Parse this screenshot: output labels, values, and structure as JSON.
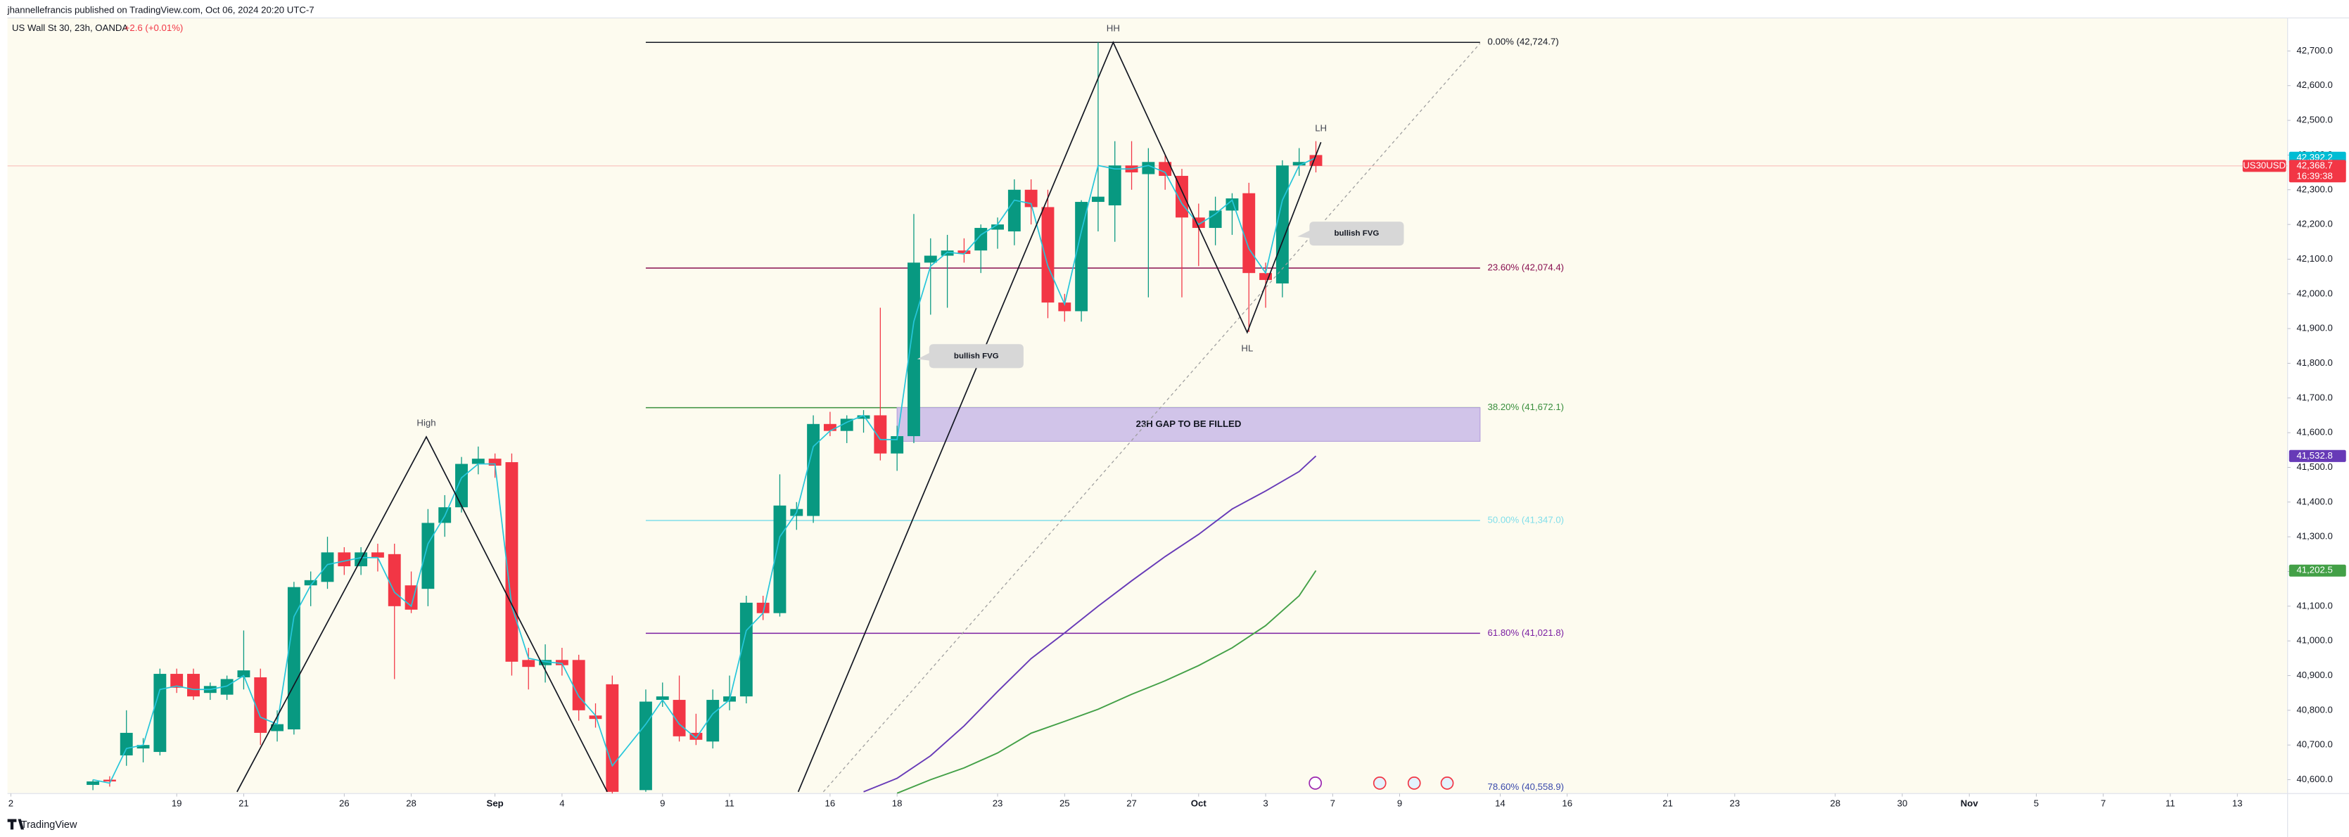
{
  "chart_data": {
    "type": "candlestick",
    "header": "jhannellefrancis published on TradingView.com, Oct 06, 2024 20:20 UTC-7",
    "title": "US Wall St 30, 23h, OANDA",
    "change": "+2.6 (+0.01%)",
    "symbol": "US30USD",
    "countdown": "16:39:38",
    "branding": "TradingView",
    "up_color": "#089981",
    "down_color": "#f23645",
    "x": [
      0,
      1,
      2,
      3,
      4,
      5,
      6,
      7,
      8,
      9,
      10,
      11,
      12,
      13,
      14,
      15,
      16,
      17,
      18,
      19,
      20,
      21,
      22,
      23,
      24,
      25,
      26,
      27,
      28,
      29,
      30,
      31,
      33,
      34,
      35,
      36,
      37,
      38,
      39,
      40,
      41,
      42,
      43,
      44,
      45,
      46,
      47,
      48,
      49,
      50,
      51,
      52,
      53,
      54,
      55,
      56,
      57,
      58,
      59,
      60,
      61,
      62,
      63,
      64,
      65,
      66,
      67,
      68,
      69,
      70,
      71,
      72,
      73
    ],
    "open": [
      40585,
      40600,
      40670,
      40690,
      40680,
      40905,
      40905,
      40850,
      40845,
      40895,
      40895,
      40740,
      40745,
      41160,
      41170,
      41255,
      41215,
      41255,
      41250,
      41160,
      41150,
      41340,
      41385,
      41510,
      41525,
      41515,
      40945,
      40930,
      40945,
      40945,
      40785,
      40875,
      40570,
      40830,
      40830,
      40735,
      40710,
      40825,
      40840,
      41110,
      41080,
      41360,
      41360,
      41625,
      41605,
      41640,
      41650,
      41540,
      41590,
      42090,
      42110,
      42125,
      42125,
      42185,
      42180,
      42300,
      42250,
      41975,
      41950,
      42265,
      42255,
      42370,
      42345,
      42380,
      42340,
      42220,
      42190,
      42240,
      42290,
      42060,
      42030,
      42370,
      42400
    ],
    "high": [
      40600,
      40610,
      40800,
      40720,
      40920,
      40920,
      40920,
      40880,
      40900,
      41030,
      40920,
      40800,
      41170,
      41200,
      41300,
      41270,
      41270,
      41280,
      41280,
      41200,
      41380,
      41420,
      41530,
      41560,
      41540,
      41540,
      40980,
      40990,
      40980,
      40960,
      40820,
      40900,
      40860,
      40880,
      40900,
      40790,
      40860,
      40900,
      41130,
      41130,
      41480,
      41400,
      41650,
      41660,
      41650,
      41665,
      41960,
      41620,
      42230,
      42160,
      42170,
      42160,
      42200,
      42220,
      42330,
      42330,
      42300,
      42000,
      42270,
      42724.7,
      42440,
      42440,
      42420,
      42400,
      42360,
      42260,
      42280,
      42290,
      42320,
      42090,
      42385,
      42420,
      42440
    ],
    "low": [
      40570,
      40580,
      40640,
      40650,
      40670,
      40850,
      40830,
      40830,
      40830,
      40860,
      40700,
      40710,
      40730,
      41100,
      41150,
      41190,
      41190,
      41200,
      40890,
      41080,
      41100,
      41300,
      41370,
      41480,
      41470,
      40900,
      40860,
      40880,
      40900,
      40770,
      40750,
      40560,
      40565,
      40810,
      40710,
      40700,
      40690,
      40800,
      40820,
      41060,
      41070,
      41320,
      41340,
      41590,
      41570,
      41600,
      41520,
      41490,
      41570,
      41940,
      41960,
      42090,
      42060,
      42130,
      42140,
      42200,
      41930,
      41920,
      41920,
      42180,
      42150,
      42300,
      41990,
      42300,
      41990,
      42080,
      42140,
      42170,
      41890,
      41960,
      41990,
      42340,
      42350
    ],
    "close": [
      40595,
      40595,
      40735,
      40700,
      40905,
      40865,
      40840,
      40870,
      40890,
      40915,
      40735,
      40760,
      41155,
      41175,
      41255,
      41215,
      41255,
      41240,
      41100,
      41090,
      41340,
      41385,
      41510,
      41525,
      41505,
      40940,
      40925,
      40945,
      40930,
      40800,
      40775,
      40565,
      40825,
      40840,
      40725,
      40715,
      40830,
      40840,
      41110,
      41080,
      41390,
      41380,
      41625,
      41605,
      41640,
      41650,
      41540,
      41590,
      42090,
      42110,
      42125,
      42115,
      42190,
      42200,
      42300,
      42250,
      41975,
      41950,
      42265,
      42280,
      42370,
      42350,
      42380,
      42340,
      42220,
      42190,
      42240,
      42275,
      42060,
      42040,
      42370,
      42380,
      42368.7
    ],
    "lines": [
      {
        "color": "#26c6da",
        "x": [
          0,
          1,
          2,
          3,
          4,
          5,
          6,
          7,
          8,
          9,
          10,
          11,
          12,
          13,
          14,
          15,
          16,
          17,
          18,
          19,
          20,
          21,
          22,
          23,
          24,
          25,
          26,
          27,
          28,
          29,
          30,
          31,
          33,
          34,
          35,
          36,
          37,
          38,
          39,
          40,
          41,
          42,
          43,
          44,
          45,
          46,
          47,
          48,
          49,
          50,
          51,
          52,
          53,
          54,
          55,
          56,
          57,
          58,
          59,
          60,
          61,
          62,
          63,
          64,
          65,
          66,
          67,
          68,
          69,
          70,
          71,
          72,
          73
        ],
        "values": [
          40600,
          40590,
          40690,
          40700,
          40860,
          40870,
          40860,
          40860,
          40870,
          40900,
          40780,
          40760,
          41070,
          41160,
          41220,
          41230,
          41240,
          41240,
          41140,
          41100,
          41280,
          41360,
          41470,
          41510,
          41510,
          41100,
          40950,
          40940,
          40935,
          40840,
          40785,
          40640,
          40760,
          40830,
          40760,
          40720,
          40790,
          40830,
          41030,
          41080,
          41300,
          41370,
          41560,
          41605,
          41630,
          41650,
          41580,
          41580,
          41920,
          42080,
          42120,
          42115,
          42170,
          42200,
          42270,
          42260,
          42080,
          41970,
          42180,
          42370,
          42360,
          42360,
          42370,
          42350,
          42260,
          42200,
          42230,
          42270,
          42130,
          42060,
          42270,
          42370,
          42392.2
        ]
      },
      {
        "color": "#673ab7",
        "x": [
          46,
          48,
          50,
          52,
          54,
          56,
          58,
          60,
          62,
          64,
          66,
          68,
          70,
          72,
          73
        ],
        "values": [
          40565,
          40604,
          40669,
          40755,
          40854,
          40949,
          41023,
          41100,
          41173,
          41243,
          41307,
          41380,
          41432,
          41488,
          41532.8
        ]
      },
      {
        "color": "#43a047",
        "x": [
          48,
          50,
          52,
          54,
          56,
          58,
          60,
          62,
          64,
          66,
          68,
          70,
          72,
          73
        ],
        "values": [
          40561,
          40600,
          40634,
          40677,
          40734,
          40768,
          40803,
          40846,
          40885,
          40929,
          40980,
          41044,
          41130,
          41202.5
        ]
      }
    ],
    "price_tags": [
      {
        "value": 42392.2,
        "label": "42,392.2",
        "color": "#00bcd4"
      },
      {
        "value": 42368.7,
        "label": "42,368.7",
        "color": "#f23645"
      },
      {
        "value": 41532.8,
        "label": "41,532.8",
        "color": "#673ab7"
      },
      {
        "value": 41202.5,
        "label": "41,202.5",
        "color": "#43a047"
      }
    ],
    "fib_x": [
      33,
      82.8
    ],
    "fib_levels": [
      {
        "value": 42724.7,
        "label": "0.00% (42,724.7)",
        "color": "#131722"
      },
      {
        "value": 42074.4,
        "label": "23.60% (42,074.4)",
        "color": "#880e4f"
      },
      {
        "value": 41672.1,
        "label": "38.20% (41,672.1)",
        "color": "#388e3c"
      },
      {
        "value": 41347.0,
        "label": "50.00% (41,347.0)",
        "color": "#80deea"
      },
      {
        "value": 41021.8,
        "label": "61.80% (41,021.8)",
        "color": "#7b1fa2"
      },
      {
        "value": 40558.9,
        "label": "78.60% (40,558.9)",
        "color": "#3949ab"
      }
    ],
    "gap": {
      "label": "23H GAP TO BE FILLED",
      "top": 41672.1,
      "bottom": 41575,
      "x": [
        48,
        82.8
      ]
    },
    "zigzags": [
      {
        "x": [
          8.6,
          19.9,
          30.7
        ],
        "values": [
          40565,
          41588,
          40565
        ],
        "labels": [
          null,
          "High",
          null
        ]
      },
      {
        "x": [
          42.1,
          60.9,
          68.9,
          73.3
        ],
        "values": [
          40565,
          42724.7,
          41889,
          42437
        ],
        "labels": [
          null,
          "HH",
          "HL",
          "LH"
        ]
      }
    ],
    "trend_line": {
      "x": [
        43.6,
        82.8
      ],
      "values": [
        40565,
        42722
      ]
    },
    "callouts": [
      {
        "text": "bullish FVG",
        "x": 49.2,
        "value": 41812
      },
      {
        "text": "bullish FVG",
        "x": 71.9,
        "value": 42165
      }
    ],
    "xlim": [
      -5.1,
      131
    ],
    "xticks": [
      {
        "value": -4.9,
        "label": "2"
      },
      {
        "value": 5,
        "label": "19"
      },
      {
        "value": 9,
        "label": "21"
      },
      {
        "value": 15,
        "label": "26"
      },
      {
        "value": 19,
        "label": "28"
      },
      {
        "value": 24,
        "label": "Sep"
      },
      {
        "value": 28,
        "label": "4"
      },
      {
        "value": 34,
        "label": "9"
      },
      {
        "value": 38,
        "label": "11"
      },
      {
        "value": 44,
        "label": "16"
      },
      {
        "value": 48,
        "label": "18"
      },
      {
        "value": 54,
        "label": "23"
      },
      {
        "value": 58,
        "label": "25"
      },
      {
        "value": 62,
        "label": "27"
      },
      {
        "value": 66,
        "label": "Oct"
      },
      {
        "value": 70,
        "label": "3"
      },
      {
        "value": 74,
        "label": "7"
      },
      {
        "value": 78,
        "label": "9"
      },
      {
        "value": 84,
        "label": "14"
      },
      {
        "value": 88,
        "label": "16"
      },
      {
        "value": 94,
        "label": "21"
      },
      {
        "value": 98,
        "label": "23"
      },
      {
        "value": 104,
        "label": "28"
      },
      {
        "value": 108,
        "label": "30"
      },
      {
        "value": 112,
        "label": "Nov"
      },
      {
        "value": 116,
        "label": "5"
      },
      {
        "value": 120,
        "label": "7"
      },
      {
        "value": 124,
        "label": "11"
      },
      {
        "value": 128,
        "label": "13"
      }
    ],
    "ylim": [
      40560,
      42795
    ],
    "yticks": [
      {
        "value": 40600,
        "label": "40,600.0"
      },
      {
        "value": 40700,
        "label": "40,700.0"
      },
      {
        "value": 40800,
        "label": "40,800.0"
      },
      {
        "value": 40900,
        "label": "40,900.0"
      },
      {
        "value": 41000,
        "label": "41,000.0"
      },
      {
        "value": 41100,
        "label": "41,100.0"
      },
      {
        "value": 41200,
        "label": "41,200.0"
      },
      {
        "value": 41300,
        "label": "41,300.0"
      },
      {
        "value": 41400,
        "label": "41,400.0"
      },
      {
        "value": 41500,
        "label": "41,500.0"
      },
      {
        "value": 41600,
        "label": "41,600.0"
      },
      {
        "value": 41700,
        "label": "41,700.0"
      },
      {
        "value": 41800,
        "label": "41,800.0"
      },
      {
        "value": 41900,
        "label": "41,900.0"
      },
      {
        "value": 42000,
        "label": "42,000.0"
      },
      {
        "value": 42100,
        "label": "42,100.0"
      },
      {
        "value": 42200,
        "label": "42,200.0"
      },
      {
        "value": 42300,
        "label": "42,300.0"
      },
      {
        "value": 42400,
        "label": "42,400.0"
      },
      {
        "value": 42500,
        "label": "42,500.0"
      },
      {
        "value": 42600,
        "label": "42,600.0"
      },
      {
        "value": 42700,
        "label": "42,700.0"
      }
    ]
  }
}
